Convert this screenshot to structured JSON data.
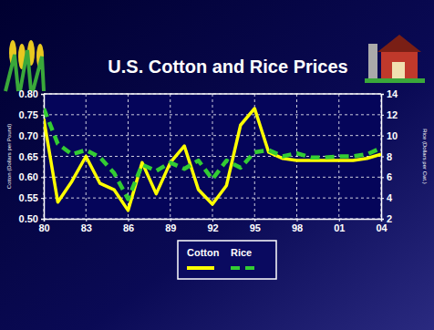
{
  "chart_data": {
    "type": "line",
    "title": "U.S. Cotton and Rice Prices",
    "categories": [
      "80",
      null,
      null,
      "83",
      null,
      null,
      "86",
      null,
      null,
      "89",
      null,
      null,
      "92",
      null,
      null,
      "95",
      null,
      null,
      "98",
      null,
      null,
      "01",
      null,
      null,
      "04"
    ],
    "y_label": "Cotton (Dollars per Pound)",
    "y2_label": "Rice (Dollars per Cwt.)",
    "ylim": [
      0.5,
      0.8
    ],
    "yticks": [
      {
        "value": 0.5,
        "label": "0.50"
      },
      0.55,
      {
        "value": 0.6,
        "label": "0.60"
      },
      0.65,
      {
        "value": 0.7,
        "label": "0.70"
      },
      0.75,
      {
        "value": 0.8,
        "label": "0.80"
      }
    ],
    "y2lim": [
      2,
      14
    ],
    "y2ticks": [
      2,
      4,
      6,
      8,
      10,
      12,
      14
    ],
    "grid": true,
    "legend": "bottom",
    "series": [
      {
        "name": "Cotton",
        "color": "#ffff00",
        "line_style": "solid",
        "values": [
          0.74,
          0.54,
          0.59,
          0.65,
          0.585,
          0.57,
          0.52,
          0.635,
          0.56,
          0.635,
          0.675,
          0.57,
          0.535,
          0.58,
          0.725,
          0.765,
          0.66,
          0.645,
          0.64,
          0.64,
          0.64,
          0.64,
          0.64,
          0.645,
          0.655
        ]
      },
      {
        "name": "Rice",
        "color": "#33cc33",
        "line_style": "dashed",
        "axis": "y2",
        "values": [
          12.6,
          9.2,
          8.2,
          8.6,
          7.9,
          6.4,
          3.9,
          7.2,
          6.6,
          7.4,
          6.8,
          7.6,
          5.8,
          7.6,
          6.9,
          8.4,
          8.6,
          8.0,
          8.3,
          7.9,
          7.9,
          8.0,
          8.0,
          8.2,
          8.8
        ]
      }
    ]
  }
}
